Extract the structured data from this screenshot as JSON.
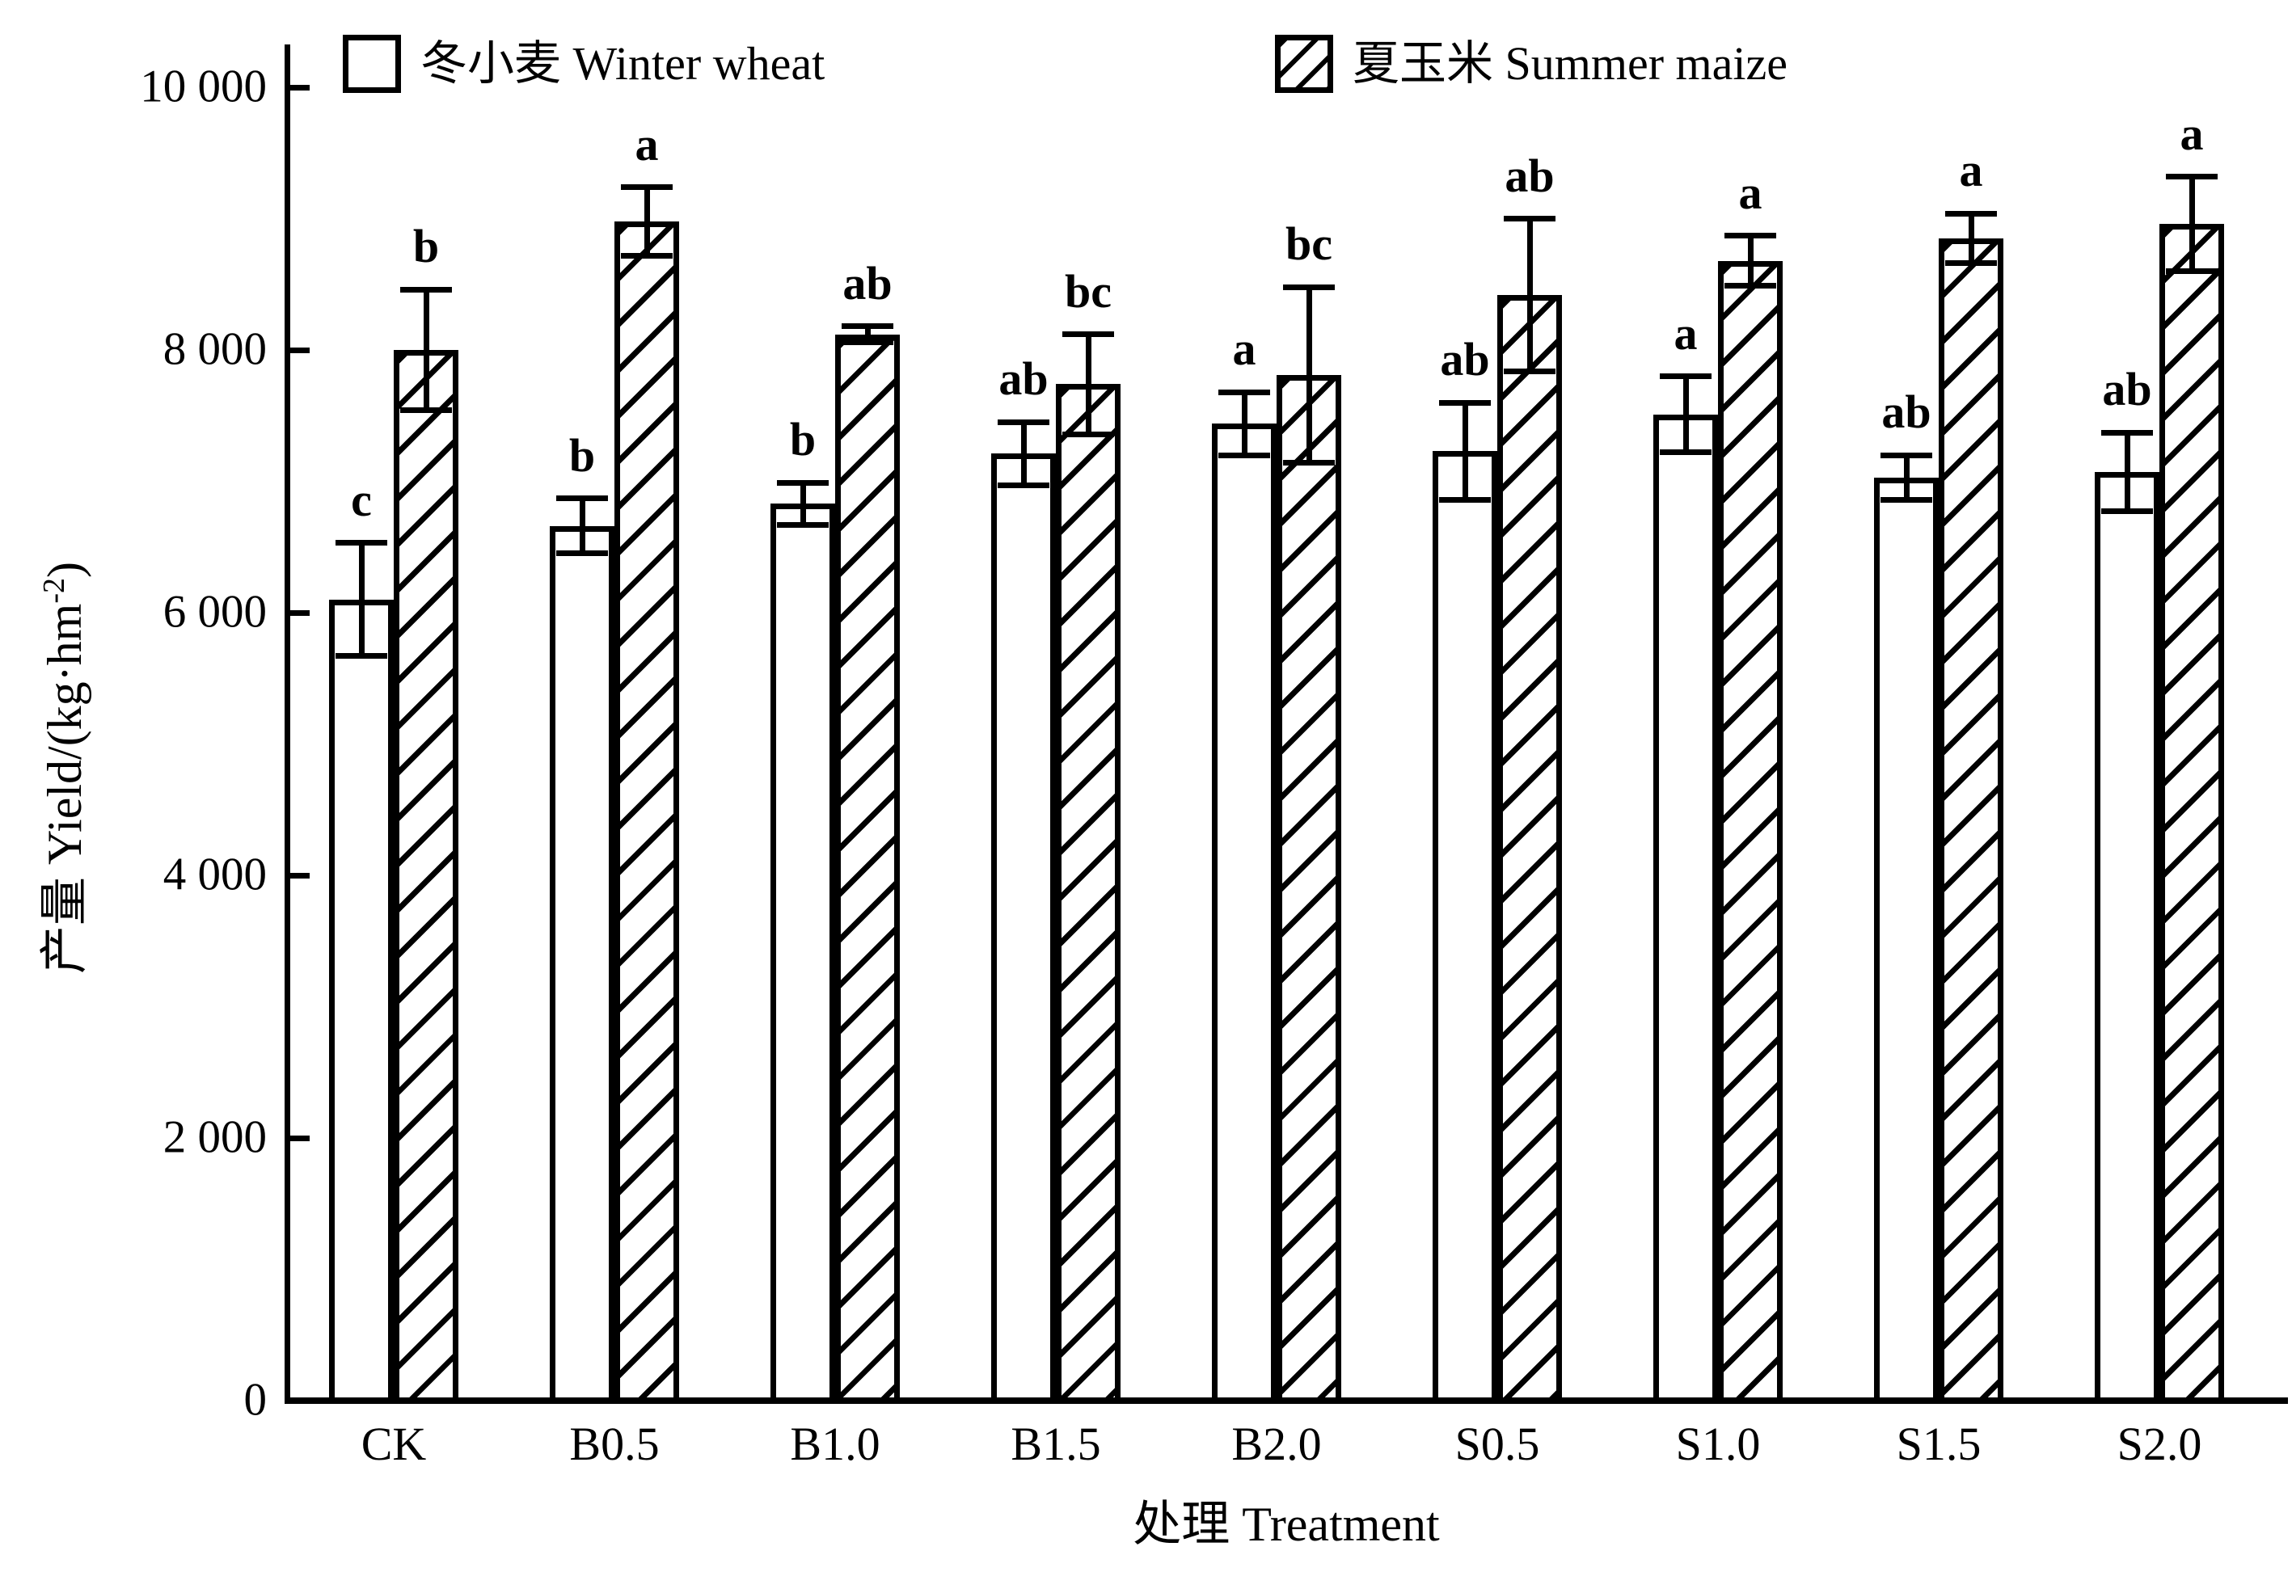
{
  "colors": {
    "foreground": "#000000",
    "background": "#ffffff"
  },
  "labels": {
    "ylabel_main": "产量 Yield/(kg·hm",
    "ylabel_sup": "-2",
    "ylabel_close": ")"
  },
  "chart_data": {
    "type": "bar",
    "title": "",
    "xlabel": "处理 Treatment",
    "ylabel": "产量 Yield/(kg·hm⁻²)",
    "ylim": [
      0,
      10000
    ],
    "y_ticks": [
      0,
      2000,
      4000,
      6000,
      8000,
      10000
    ],
    "y_tick_labels": [
      "0",
      "2 000",
      "4 000",
      "6 000",
      "8 000",
      "10 000"
    ],
    "grid": false,
    "legend_position": "top",
    "error_bars": true,
    "categories": [
      "CK",
      "B0.5",
      "B1.0",
      "B1.5",
      "B2.0",
      "S0.5",
      "S1.0",
      "S1.5",
      "S2.0"
    ],
    "series": [
      {
        "name": "冬小麦 Winter wheat",
        "key": "winter-wheat",
        "pattern": "plain",
        "values": [
          6100,
          6660,
          6830,
          7210,
          7440,
          7230,
          7510,
          7030,
          7070
        ],
        "errors": [
          430,
          210,
          160,
          240,
          240,
          370,
          290,
          170,
          300
        ],
        "letters": [
          "c",
          "b",
          "b",
          "ab",
          "a",
          "ab",
          "a",
          "ab",
          "ab"
        ]
      },
      {
        "name": "夏玉米 Summer maize",
        "key": "summer-maize",
        "pattern": "diagonal-hatch",
        "values": [
          8000,
          8980,
          8120,
          7740,
          7810,
          8420,
          8680,
          8850,
          8960
        ],
        "errors": [
          460,
          260,
          60,
          380,
          670,
          580,
          190,
          190,
          360
        ],
        "letters": [
          "b",
          "a",
          "ab",
          "bc",
          "bc",
          "ab",
          "a",
          "a",
          "a"
        ]
      }
    ]
  }
}
